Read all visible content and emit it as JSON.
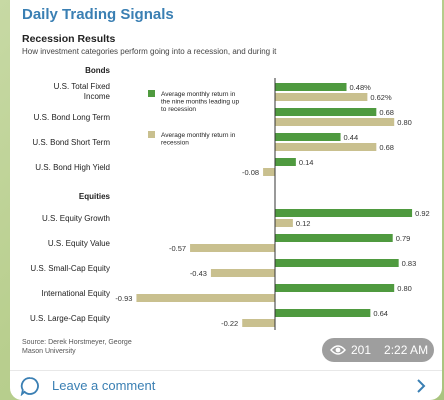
{
  "channel": {
    "title": "Daily Trading Signals"
  },
  "chart_data": {
    "type": "bar",
    "orientation": "horizontal",
    "title": "Recession Results",
    "subtitle": "How investment categories perform going into a recession, and during it",
    "groups": [
      {
        "name": "Bonds",
        "categories": [
          "U.S. Total Fixed Income",
          "U.S. Bond Long Term",
          "U.S. Bond Short Term",
          "U.S. Bond High Yield"
        ]
      },
      {
        "name": "Equities",
        "categories": [
          "U.S. Equity Growth",
          "U.S. Equity Value",
          "U.S. Small-Cap Equity",
          "International Equity",
          "U.S. Large-Cap Equity"
        ]
      }
    ],
    "series": [
      {
        "name": "Average monthly return in the nine months leading up to recession",
        "color": "#4f9a3f",
        "values": [
          0.48,
          0.68,
          0.44,
          0.14,
          0.92,
          0.79,
          0.83,
          0.8,
          0.64
        ],
        "labels": [
          "0.48%",
          "0.68",
          "0.44",
          "0.14",
          "0.92",
          "0.79",
          "0.83",
          "0.80",
          "0.64"
        ]
      },
      {
        "name": "Average monthly return in recession",
        "color": "#c9c08f",
        "values": [
          0.62,
          0.8,
          0.68,
          -0.08,
          0.12,
          -0.57,
          -0.43,
          -0.93,
          -0.22
        ],
        "labels": [
          "0.62%",
          "0.80",
          "0.68",
          "-0.08",
          "0.12",
          "-0.57",
          "-0.43",
          "-0.93",
          "-0.22"
        ]
      }
    ],
    "xlim": [
      -1.0,
      1.0
    ],
    "legend": "top-left inside plot",
    "source": "Source: Derek Horstmeyer, George Mason University"
  },
  "message": {
    "views": "201",
    "time": "2:22 AM"
  },
  "footer": {
    "comment_label": "Leave a comment"
  },
  "icons": {
    "views": "eye-icon",
    "comment": "comment-bubble-icon",
    "arrow": "chevron-right-icon"
  }
}
